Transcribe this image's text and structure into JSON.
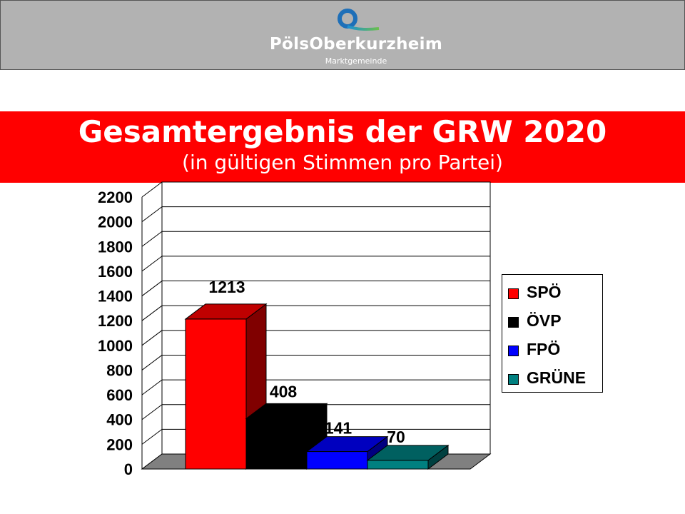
{
  "header": {
    "brand_name": "PölsOberkurzheim",
    "brand_sub": "Marktgemeinde",
    "logo_icon": "ring-logo-icon"
  },
  "title": "Gesamtergebnis der GRW 2020",
  "subtitle": "(in gültigen Stimmen pro Partei)",
  "colors": {
    "banner": "#ff0000",
    "header_bg": "#b2b2b2"
  },
  "chart_data": {
    "type": "bar",
    "categories": [
      "SPÖ",
      "ÖVP",
      "FPÖ",
      "GRÜNE"
    ],
    "values": [
      1213,
      408,
      141,
      70
    ],
    "data_labels": [
      "1213",
      "408",
      "141",
      "70"
    ],
    "colors": [
      "#ff0000",
      "#000000",
      "#0000ff",
      "#008080"
    ],
    "ylim": [
      0,
      2200
    ],
    "yticks": [
      0,
      200,
      400,
      600,
      800,
      1000,
      1200,
      1400,
      1600,
      1800,
      2000,
      2200
    ],
    "grid": true,
    "legend_position": "right",
    "style": "3d"
  }
}
